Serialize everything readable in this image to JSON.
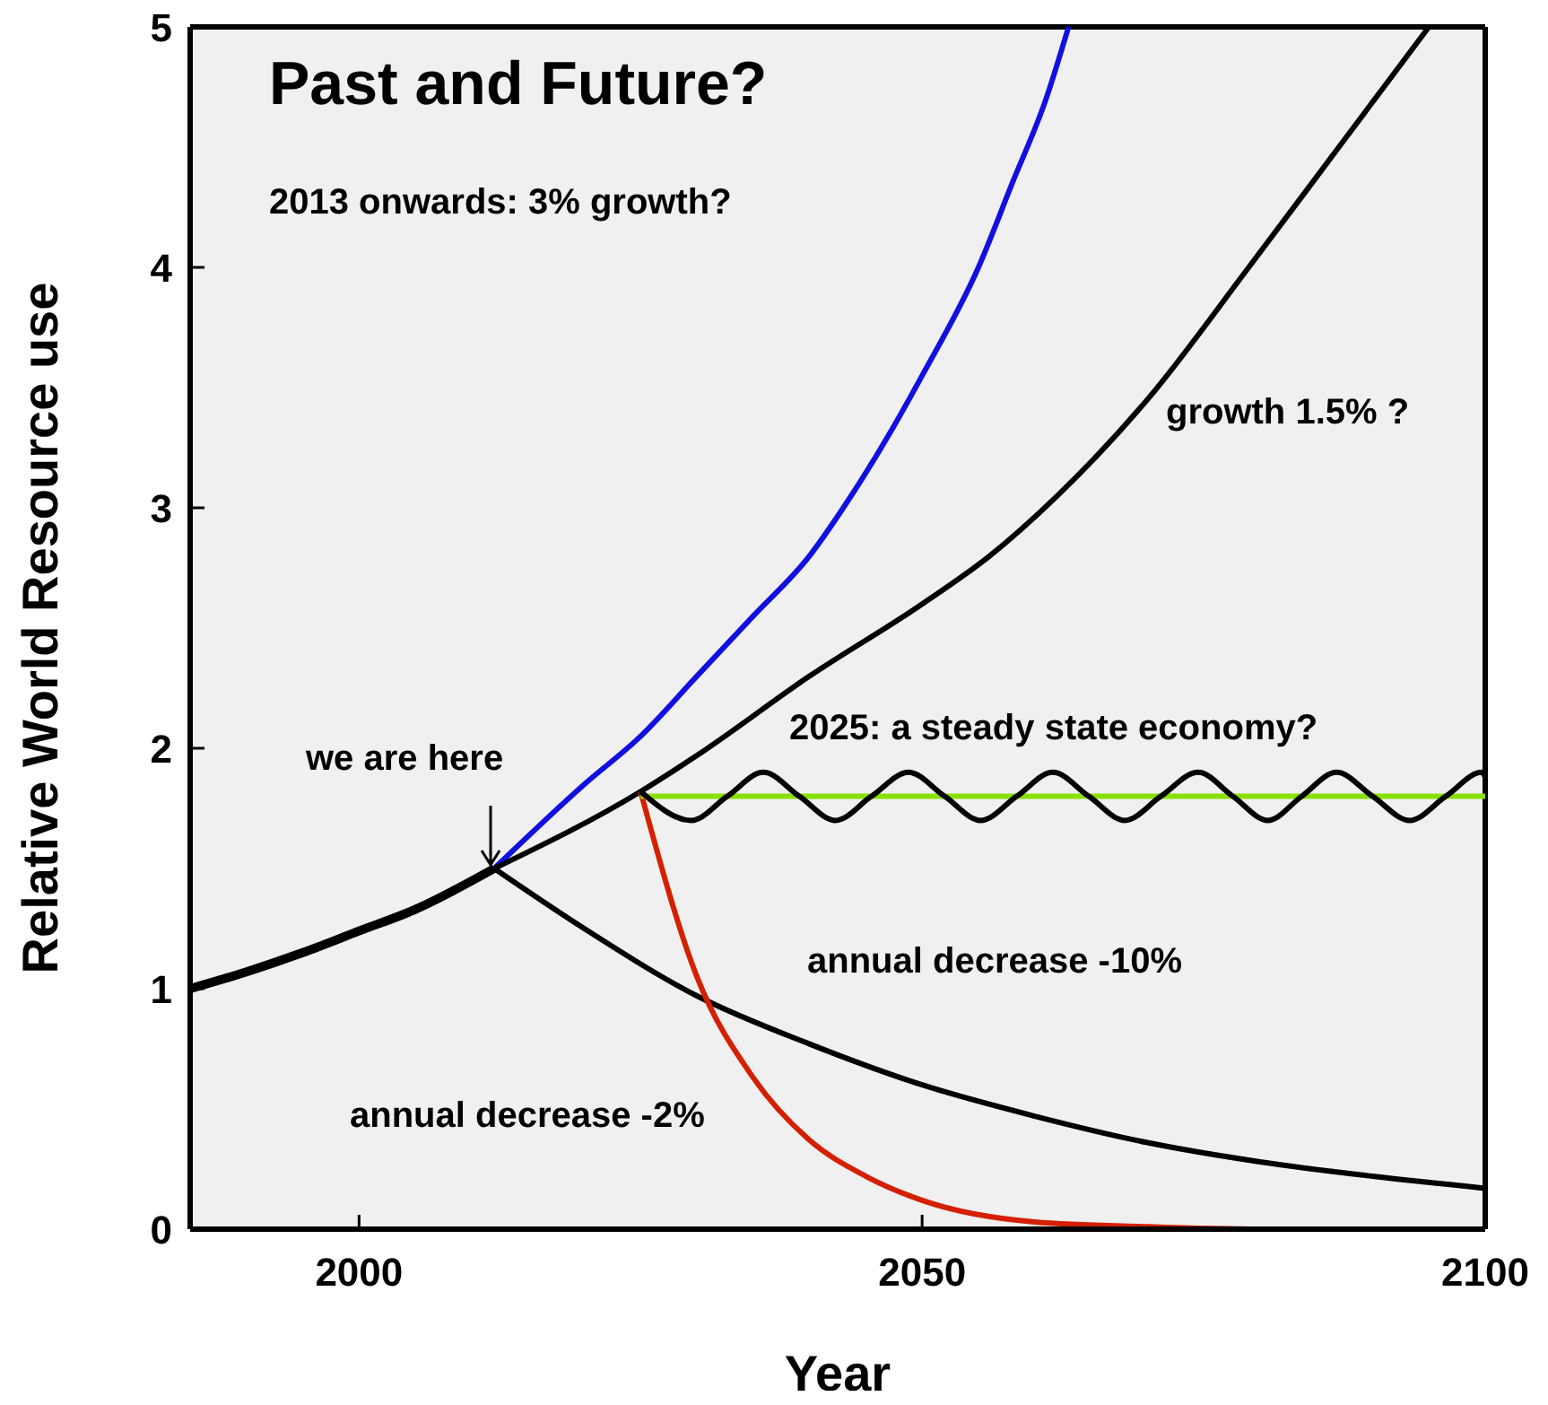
{
  "chart_data": {
    "type": "line",
    "title": "Past and Future?",
    "xlabel": "Year",
    "ylabel": "Relative World Resource use",
    "xlim": [
      1985,
      2100
    ],
    "xticks": [
      2000,
      2050,
      2100
    ],
    "ylim": [
      0,
      5
    ],
    "yticks": [
      0,
      1,
      2,
      3,
      4,
      5
    ],
    "marker": "none",
    "line_style": "solid",
    "series": [
      {
        "color": "#000000",
        "x": [
          1985,
          1990,
          1995,
          2000,
          2005,
          2012
        ],
        "values": [
          1.0,
          1.07,
          1.15,
          1.24,
          1.33,
          1.5
        ]
      },
      {
        "color": "#1010e0",
        "x": [
          2012,
          2020,
          2025,
          2030,
          2035,
          2040,
          2043,
          2047,
          2050,
          2055,
          2058,
          2061,
          2063
        ],
        "values": [
          1.5,
          1.85,
          2.05,
          2.3,
          2.55,
          2.8,
          3.0,
          3.3,
          3.55,
          4.0,
          4.35,
          4.7,
          5.0
        ]
      },
      {
        "color": "#000000",
        "x": [
          2012,
          2025,
          2030,
          2040,
          2050,
          2056,
          2062,
          2070,
          2079,
          2087,
          2095
        ],
        "values": [
          1.5,
          1.82,
          1.97,
          2.3,
          2.6,
          2.8,
          3.05,
          3.45,
          4.0,
          4.5,
          5.0
        ]
      },
      {
        "color": "#000000",
        "x": [
          2012,
          2020,
          2030,
          2040,
          2050,
          2060,
          2070,
          2080,
          2090,
          2100
        ],
        "values": [
          1.5,
          1.25,
          0.97,
          0.77,
          0.6,
          0.47,
          0.36,
          0.28,
          0.22,
          0.17
        ]
      },
      {
        "color": "#d42000",
        "x": [
          2025,
          2030,
          2035,
          2040,
          2045,
          2050,
          2060,
          2070,
          2080,
          2100
        ],
        "values": [
          1.82,
          1.05,
          0.63,
          0.37,
          0.22,
          0.12,
          0.03,
          0.01,
          0,
          0
        ]
      },
      {
        "color": "#88e000",
        "x": [
          2025,
          2100
        ],
        "values": [
          1.8,
          1.8
        ]
      },
      {
        "color": "#000000",
        "x": [
          2025,
          2029.5,
          2032.7,
          2035.9,
          2039.1,
          2042.3,
          2045.5,
          2048.8,
          2052,
          2055.2,
          2058.4,
          2061.6,
          2064.8,
          2068,
          2071.2,
          2074.5,
          2077.6,
          2080.7,
          2083.7,
          2086.8,
          2090,
          2093.3,
          2096.5,
          2099.7,
          2100
        ],
        "values": [
          1.82,
          1.7,
          1.8,
          1.9,
          1.8,
          1.7,
          1.8,
          1.9,
          1.8,
          1.7,
          1.8,
          1.9,
          1.8,
          1.7,
          1.8,
          1.9,
          1.8,
          1.7,
          1.8,
          1.9,
          1.8,
          1.7,
          1.8,
          1.9,
          1.88
        ]
      }
    ],
    "annotations": [
      "2013 onwards: 3% growth?",
      "growth 1.5% ?",
      "2025: a steady state economy?",
      {
        "text": "we are here",
        "x": 2012,
        "y": 1.5
      },
      "annual decrease -10%",
      "annual decrease -2%"
    ]
  }
}
